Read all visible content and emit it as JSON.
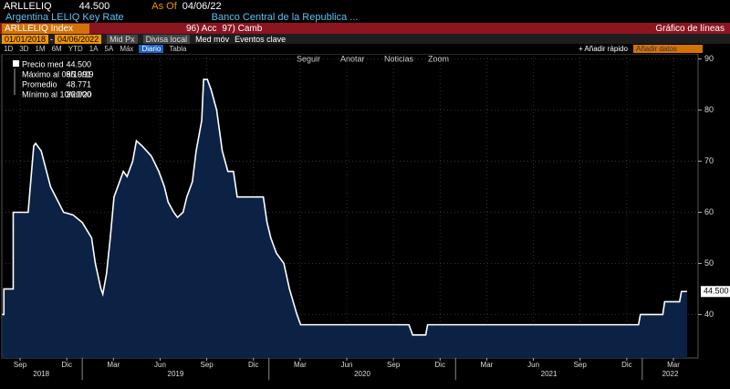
{
  "header": {
    "ticker": "ARLLELIQ",
    "price": "44.500",
    "as_of_label": "As Of",
    "as_of_date": "04/06/22",
    "name": "Argentina LELIQ Key Rate",
    "source": "Banco Central de la Republica ..."
  },
  "toolbar": {
    "security": "ARLLELIQ Index",
    "actions": [
      "96) Acc",
      "97) Camb"
    ],
    "view": "Gráfico de líneas"
  },
  "range": {
    "start": "01/01/2018",
    "separator": "-",
    "end": "04/06/2022",
    "field": "Mid Px",
    "currency": "Divisa local",
    "options": [
      "Med móv",
      "Eventos clave"
    ]
  },
  "periods": [
    "1D",
    "3D",
    "1M",
    "6M",
    "YTD",
    "1A",
    "5A",
    "Máx"
  ],
  "frequency": "Diario",
  "table": "Tabla",
  "quick_add": "+ Añadir rápido",
  "add_data": "Añadir datos",
  "chart_tools": [
    "Seguir",
    "Anotar",
    "Noticias",
    "Zoom"
  ],
  "legend": [
    {
      "label": "Precio med",
      "value": "44.500"
    },
    {
      "label": "Máximo al 09/10/19",
      "value": "85.991"
    },
    {
      "label": "Promedio",
      "value": "48.771"
    },
    {
      "label": "Mínimo al 10/20/20",
      "value": "36.000"
    }
  ],
  "chart_data": {
    "type": "line",
    "color": "#ffffff",
    "fill": "#0c2245",
    "grid": true,
    "x": [
      2018.57,
      2018.58,
      2018.58,
      2018.63,
      2018.63,
      2018.71,
      2018.74,
      2018.75,
      2018.78,
      2018.83,
      2018.9,
      2018.95,
      2019.0,
      2019.05,
      2019.07,
      2019.1,
      2019.11,
      2019.13,
      2019.15,
      2019.17,
      2019.2,
      2019.22,
      2019.24,
      2019.27,
      2019.29,
      2019.32,
      2019.37,
      2019.41,
      2019.44,
      2019.46,
      2019.49,
      2019.51,
      2019.54,
      2019.56,
      2019.59,
      2019.61,
      2019.64,
      2019.65,
      2019.67,
      2019.69,
      2019.72,
      2019.75,
      2019.78,
      2019.81,
      2019.83,
      2019.97,
      2019.99,
      2020.01,
      2020.04,
      2020.08,
      2020.11,
      2020.15,
      2020.17,
      2020.75,
      2020.77,
      2020.84,
      2020.85,
      2021.98,
      2021.99,
      2022.11,
      2022.12,
      2022.2,
      2022.21,
      2022.24
    ],
    "values": [
      40,
      40,
      45,
      45,
      60,
      60,
      73,
      73.5,
      72,
      65,
      60,
      59.5,
      58,
      55,
      50,
      45,
      44,
      48,
      55,
      63,
      66,
      68,
      67,
      70,
      74,
      73,
      71,
      68,
      65,
      62,
      60,
      59,
      60,
      63,
      66,
      72,
      78,
      86,
      86,
      84,
      80,
      72,
      68,
      68,
      63,
      63,
      58,
      55,
      52,
      50,
      45,
      40,
      38,
      38,
      36,
      36,
      38,
      38,
      40,
      40,
      42.5,
      42.5,
      44.5,
      44.5
    ],
    "xlim": [
      2018.569,
      2022.299
    ],
    "ylim": [
      31.5,
      91
    ],
    "yticks": [
      40,
      50,
      60,
      70,
      80,
      90
    ],
    "xticks": [
      {
        "value": 2018.667,
        "label": "Sep"
      },
      {
        "value": 2018.917,
        "label": "Dic"
      },
      {
        "value": 2019.167,
        "label": "Mar"
      },
      {
        "value": 2019.417,
        "label": "Jun"
      },
      {
        "value": 2019.667,
        "label": "Sep"
      },
      {
        "value": 2019.917,
        "label": "Dic"
      },
      {
        "value": 2020.167,
        "label": "Mar"
      },
      {
        "value": 2020.417,
        "label": "Jun"
      },
      {
        "value": 2020.667,
        "label": "Sep"
      },
      {
        "value": 2020.917,
        "label": "Dic"
      },
      {
        "value": 2021.167,
        "label": "Mar"
      },
      {
        "value": 2021.417,
        "label": "Jun"
      },
      {
        "value": 2021.667,
        "label": "Sep"
      },
      {
        "value": 2021.917,
        "label": "Dic"
      },
      {
        "value": 2022.167,
        "label": "Mar"
      }
    ],
    "year_ticks": [
      {
        "value": 2018.78,
        "label": "2018"
      },
      {
        "value": 2019.5,
        "label": "2019"
      },
      {
        "value": 2020.5,
        "label": "2020"
      },
      {
        "value": 2021.5,
        "label": "2021"
      },
      {
        "value": 2022.15,
        "label": "2022"
      }
    ],
    "year_bounds": [
      2019,
      2020,
      2021,
      2022
    ]
  }
}
